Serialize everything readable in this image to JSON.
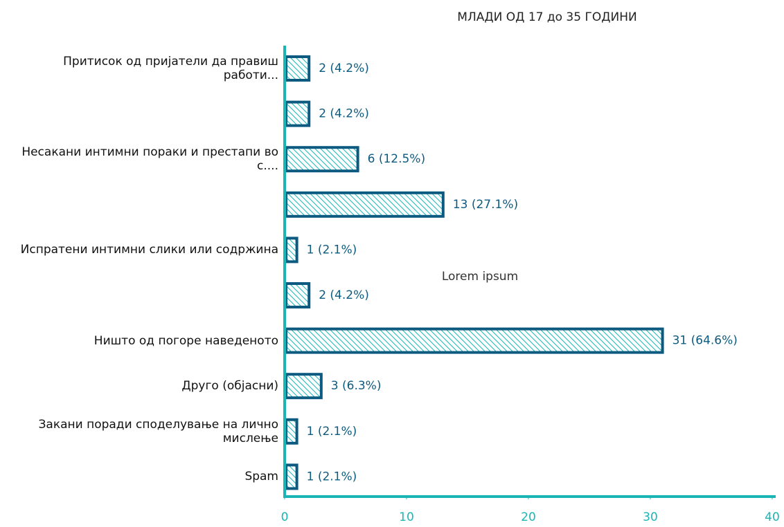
{
  "chart_data": {
    "type": "barh",
    "title": "МЛАДИ ОД 17 до 35 ГОДИНИ",
    "annotation": "Lorem ipsum",
    "categories": [
      "Притисок од пријатели да правиш работи...",
      null,
      "Несакани интимни пораки и престапи во с....",
      null,
      "Испратени интимни слики или содржина",
      null,
      "Ништо од погоре наведеното",
      "Друго (објасни)",
      "Закани поради споделување на лично мислење",
      "Spam"
    ],
    "values": [
      2,
      2,
      6,
      13,
      1,
      2,
      31,
      3,
      1,
      1
    ],
    "value_labels": [
      "2 (4.2%)",
      "2 (4.2%)",
      "6 (12.5%)",
      "13 (27.1%)",
      "1 (2.1%)",
      "2 (4.2%)",
      "31 (64.6%)",
      "3 (6.3%)",
      "1 (2.1%)",
      "1 (2.1%)"
    ],
    "color": "#0d5a80",
    "hatch_color": "#1bb5b5",
    "axis_color": "#1bb5b5",
    "xlim": [
      0,
      40
    ],
    "xticks": [
      0,
      10,
      20,
      30,
      40
    ],
    "grid": false
  }
}
